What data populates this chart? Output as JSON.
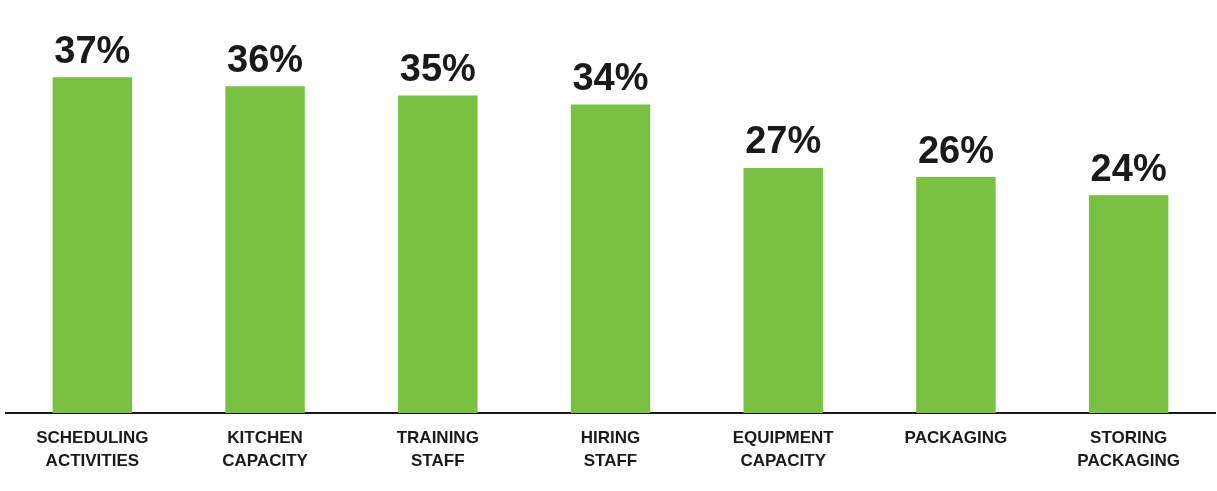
{
  "chart_data": {
    "type": "bar",
    "categories": [
      "SCHEDULING ACTIVITIES",
      "KITCHEN CAPACITY",
      "TRAINING STAFF",
      "HIRING STAFF",
      "EQUIPMENT CAPACITY",
      "PACKAGING",
      "STORING PACKAGING"
    ],
    "values": [
      37,
      36,
      35,
      34,
      27,
      26,
      24
    ],
    "value_labels": [
      "37%",
      "36%",
      "35%",
      "34%",
      "27%",
      "26%",
      "24%"
    ],
    "color": "#7ac143",
    "tick_labels": "x",
    "grid": false,
    "legend": false
  }
}
